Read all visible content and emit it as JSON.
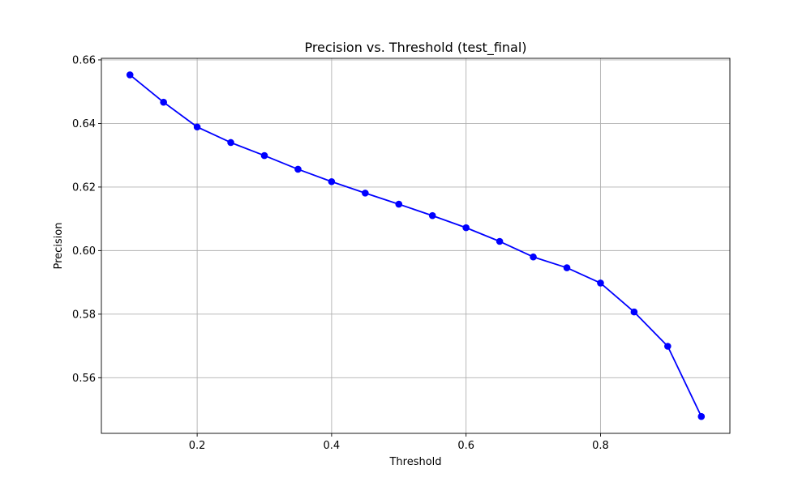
{
  "chart_data": {
    "type": "line",
    "title": "Precision vs. Threshold (test_final)",
    "xlabel": "Threshold",
    "ylabel": "Precision",
    "xlim": [
      0.0575,
      0.9925
    ],
    "ylim": [
      0.5425,
      0.6605
    ],
    "xticks": [
      0.2,
      0.4,
      0.6,
      0.8
    ],
    "xtick_labels": [
      "0.2",
      "0.4",
      "0.6",
      "0.8"
    ],
    "yticks": [
      0.56,
      0.58,
      0.6,
      0.62,
      0.64,
      0.66
    ],
    "ytick_labels": [
      "0.56",
      "0.58",
      "0.60",
      "0.62",
      "0.64",
      "0.66"
    ],
    "grid": true,
    "series": [
      {
        "color": "#0000ff",
        "marker": "circle",
        "x": [
          0.1,
          0.15,
          0.2,
          0.25,
          0.3,
          0.35,
          0.4,
          0.45,
          0.5,
          0.55,
          0.6,
          0.65,
          0.7,
          0.75,
          0.8,
          0.85,
          0.9,
          0.95
        ],
        "y": [
          0.6553,
          0.6467,
          0.6389,
          0.634,
          0.6299,
          0.6256,
          0.6217,
          0.6181,
          0.6146,
          0.611,
          0.6072,
          0.6029,
          0.598,
          0.5946,
          0.5898,
          0.5807,
          0.5699,
          0.5478
        ]
      }
    ]
  }
}
